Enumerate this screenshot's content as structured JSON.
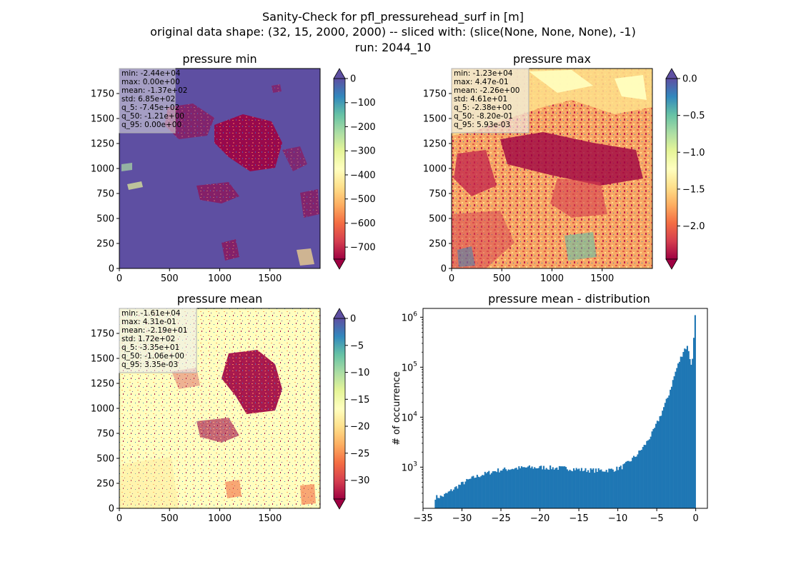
{
  "figure": {
    "suptitle": [
      "Sanity-Check for pfl_pressurehead_surf in [m]",
      "original data shape: (32, 15, 2000, 2000) -- sliced with: (slice(None, None, None), -1)",
      "run: 2044_10"
    ]
  },
  "chart_data": [
    {
      "type": "heatmap",
      "title": "pressure min",
      "x_range": [
        0,
        2000
      ],
      "y_range": [
        0,
        2000
      ],
      "xticks": [
        "0",
        "500",
        "1000",
        "1500"
      ],
      "yticks": [
        "0",
        "250",
        "500",
        "750",
        "1000",
        "1250",
        "1500",
        "1750"
      ],
      "colorbar": {
        "colormap": "Spectral",
        "range": [
          -750,
          0
        ],
        "extend": "both",
        "ticks": [
          "0",
          "−100",
          "−200",
          "−300",
          "−400",
          "−500",
          "−600",
          "−700"
        ],
        "tick_values": [
          0,
          -100,
          -200,
          -300,
          -400,
          -500,
          -600,
          -700
        ]
      },
      "stats": [
        "min: -2.44e+04",
        "max: 0.00e+00",
        "mean: -1.37e+02",
        "std: 6.85e+02",
        "q_5: -7.45e+02",
        "q_50: -1.21e+00",
        "q_95: 0.00e+00"
      ]
    },
    {
      "type": "heatmap",
      "title": "pressure max",
      "x_range": [
        0,
        2000
      ],
      "y_range": [
        0,
        2000
      ],
      "xticks": [
        "0",
        "500",
        "1000",
        "1500"
      ],
      "yticks": [
        "0",
        "250",
        "500",
        "750",
        "1000",
        "1250",
        "1500",
        "1750"
      ],
      "colorbar": {
        "colormap": "Spectral",
        "range": [
          -2.45,
          0
        ],
        "extend": "both",
        "ticks": [
          "0.0",
          "−0.5",
          "−1.0",
          "−1.5",
          "−2.0"
        ],
        "tick_values": [
          0,
          -0.5,
          -1.0,
          -1.5,
          -2.0
        ]
      },
      "stats": [
        "min: -1.23e+04",
        "max: 4.47e-01",
        "mean: -2.26e+00",
        "std: 4.61e+01",
        "q_5: -2.38e+00",
        "q_50: -8.20e-01",
        "q_95: 5.93e-03"
      ]
    },
    {
      "type": "heatmap",
      "title": "pressure mean",
      "x_range": [
        0,
        2000
      ],
      "y_range": [
        0,
        2000
      ],
      "xticks": [
        "0",
        "500",
        "1000",
        "1500"
      ],
      "yticks": [
        "0",
        "250",
        "500",
        "750",
        "1000",
        "1250",
        "1500",
        "1750"
      ],
      "colorbar": {
        "colormap": "Spectral",
        "range": [
          -33.5,
          0
        ],
        "extend": "both",
        "ticks": [
          "0",
          "−5",
          "−10",
          "−15",
          "−20",
          "−25",
          "−30"
        ],
        "tick_values": [
          0,
          -5,
          -10,
          -15,
          -20,
          -25,
          -30
        ]
      },
      "stats": [
        "min: -1.61e+04",
        "max: 4.31e-01",
        "mean: -2.19e+01",
        "std: 1.72e+02",
        "q_5: -3.35e+01",
        "q_50: -1.06e+00",
        "q_95: 3.35e-03"
      ]
    },
    {
      "type": "bar",
      "title": "pressure mean - distribution",
      "ylabel": "# of occurrence",
      "xlabel": "",
      "yscale": "log",
      "xlim": [
        -35,
        1.5
      ],
      "ylim": [
        150,
        1500000
      ],
      "xticks": [
        "−35",
        "−30",
        "−25",
        "−20",
        "−15",
        "−10",
        "−5",
        "0"
      ],
      "xtick_values": [
        -35,
        -30,
        -25,
        -20,
        -15,
        -10,
        -5,
        0
      ],
      "yticks": [
        "10",
        "10",
        "10"
      ],
      "ytick_exponents": [
        "3",
        "4",
        "5",
        "6"
      ],
      "ytick_values": [
        1000,
        10000,
        100000,
        1000000
      ],
      "color": "#1f77b4",
      "bin_range": [
        -33.5,
        0
      ],
      "profile": [
        {
          "x": -33.5,
          "y": 250
        },
        {
          "x": -32.5,
          "y": 260
        },
        {
          "x": -31.5,
          "y": 330
        },
        {
          "x": -30.5,
          "y": 420
        },
        {
          "x": -29.5,
          "y": 520
        },
        {
          "x": -28.5,
          "y": 620
        },
        {
          "x": -27.5,
          "y": 700
        },
        {
          "x": -26.5,
          "y": 780
        },
        {
          "x": -25.5,
          "y": 860
        },
        {
          "x": -24.5,
          "y": 900
        },
        {
          "x": -23.5,
          "y": 940
        },
        {
          "x": -22.5,
          "y": 960
        },
        {
          "x": -21.5,
          "y": 990
        },
        {
          "x": -20.5,
          "y": 980
        },
        {
          "x": -19.5,
          "y": 990
        },
        {
          "x": -18.5,
          "y": 970
        },
        {
          "x": -17.5,
          "y": 960
        },
        {
          "x": -16.5,
          "y": 950
        },
        {
          "x": -15.5,
          "y": 920
        },
        {
          "x": -14.5,
          "y": 880
        },
        {
          "x": -13.5,
          "y": 870
        },
        {
          "x": -12.5,
          "y": 860
        },
        {
          "x": -11.5,
          "y": 870
        },
        {
          "x": -10.5,
          "y": 900
        },
        {
          "x": -9.5,
          "y": 1000
        },
        {
          "x": -8.5,
          "y": 1300
        },
        {
          "x": -7.5,
          "y": 1800
        },
        {
          "x": -6.5,
          "y": 2800
        },
        {
          "x": -5.5,
          "y": 5000
        },
        {
          "x": -4.5,
          "y": 11000
        },
        {
          "x": -3.5,
          "y": 27000
        },
        {
          "x": -2.5,
          "y": 90000
        },
        {
          "x": -1.5,
          "y": 230000
        },
        {
          "x": -1.0,
          "y": 260000
        },
        {
          "x": -0.5,
          "y": 90000
        },
        {
          "x": -0.1,
          "y": 1100000
        }
      ]
    }
  ]
}
